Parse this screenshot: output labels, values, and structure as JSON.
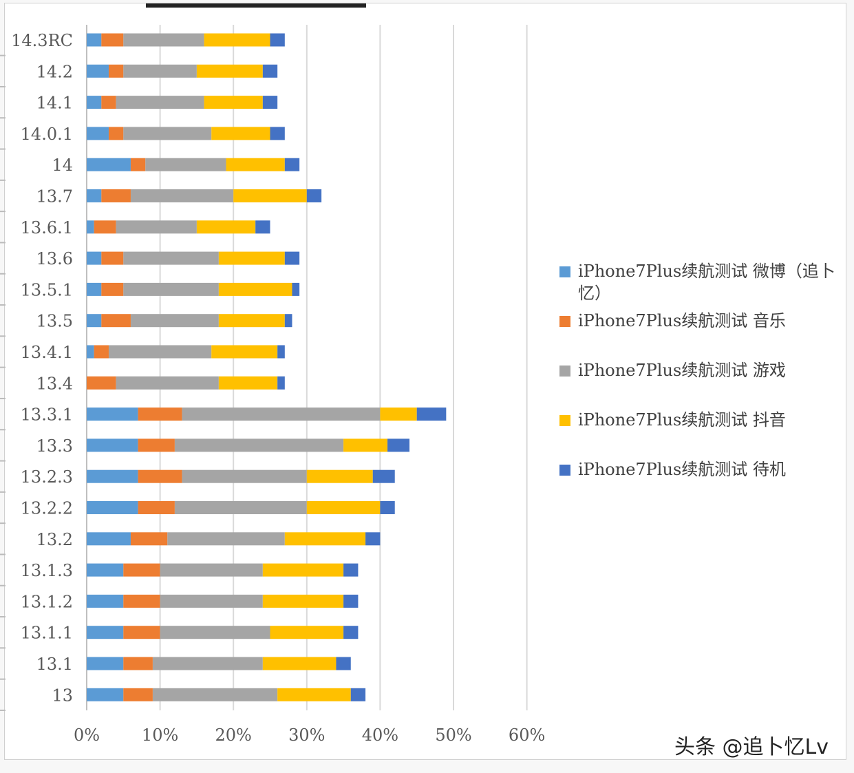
{
  "chart_data": {
    "type": "bar",
    "orientation": "horizontal",
    "stacked": true,
    "title": "iPhone7Plus续航测试",
    "categories": [
      "13",
      "13.1",
      "13.1.1",
      "13.1.2",
      "13.1.3",
      "13.2",
      "13.2.2",
      "13.2.3",
      "13.3",
      "13.3.1",
      "13.4",
      "13.4.1",
      "13.5",
      "13.5.1",
      "13.6",
      "13.6.1",
      "13.7",
      "14",
      "14.0.1",
      "14.1",
      "14.2",
      "14.3RC"
    ],
    "series": [
      {
        "name": "iPhone7Plus续航测试 微博（追卜忆）",
        "color": "#5b9bd5",
        "values": [
          5,
          5,
          5,
          5,
          5,
          6,
          7,
          7,
          7,
          7,
          0,
          1,
          2,
          2,
          2,
          1,
          2,
          6,
          3,
          2,
          3,
          2
        ]
      },
      {
        "name": "iPhone7Plus续航测试 音乐",
        "color": "#ed7d31",
        "values": [
          4,
          4,
          5,
          5,
          5,
          5,
          5,
          6,
          5,
          6,
          4,
          2,
          4,
          3,
          3,
          3,
          4,
          2,
          2,
          2,
          2,
          3
        ]
      },
      {
        "name": "iPhone7Plus续航测试 游戏",
        "color": "#a5a5a5",
        "values": [
          17,
          15,
          15,
          14,
          14,
          16,
          18,
          17,
          23,
          27,
          14,
          14,
          12,
          13,
          13,
          11,
          14,
          11,
          12,
          12,
          10,
          11
        ]
      },
      {
        "name": "iPhone7Plus续航测试 抖音",
        "color": "#ffc000",
        "values": [
          10,
          10,
          10,
          11,
          11,
          11,
          10,
          9,
          6,
          5,
          8,
          9,
          9,
          10,
          9,
          8,
          10,
          8,
          8,
          8,
          9,
          9
        ]
      },
      {
        "name": "iPhone7Plus续航测试 待机",
        "color": "#4472c4",
        "values": [
          2,
          2,
          2,
          2,
          2,
          2,
          2,
          3,
          3,
          4,
          1,
          1,
          1,
          1,
          2,
          2,
          2,
          2,
          2,
          2,
          2,
          2
        ]
      }
    ],
    "xlim": [
      0,
      60
    ],
    "xticks": [
      "0%",
      "10%",
      "20%",
      "30%",
      "40%",
      "50%",
      "60%"
    ],
    "grid": true,
    "legend_position": "right"
  },
  "watermark": "头条 @追卜忆Lv"
}
